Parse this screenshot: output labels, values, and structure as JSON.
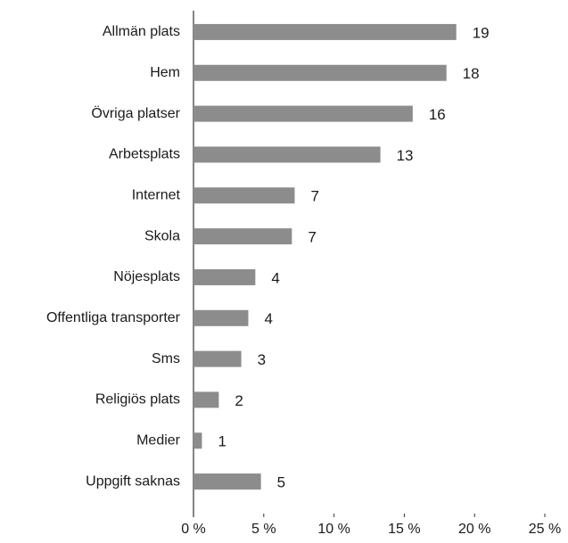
{
  "chart_data": {
    "type": "bar",
    "orientation": "horizontal",
    "categories": [
      "Allmän plats",
      "Hem",
      "Övriga platser",
      "Arbetsplats",
      "Internet",
      "Skola",
      "Nöjesplats",
      "Offentliga transporter",
      "Sms",
      "Religiös plats",
      "Medier",
      "Uppgift saknas"
    ],
    "values": [
      18.7,
      18.0,
      15.6,
      13.3,
      7.2,
      7.0,
      4.4,
      3.9,
      3.4,
      1.8,
      0.6,
      4.8
    ],
    "value_labels": [
      "19",
      "18",
      "16",
      "13",
      "7",
      "7",
      "4",
      "4",
      "3",
      "2",
      "1",
      "5"
    ],
    "color": "#8c8c8c",
    "xlim": [
      0,
      25
    ],
    "xticks": [
      {
        "value": 0,
        "label": "0 %"
      },
      {
        "value": 5,
        "label": "5 %"
      },
      {
        "value": 10,
        "label": "10 %"
      },
      {
        "value": 15,
        "label": "15 %"
      },
      {
        "value": 20,
        "label": "20 %"
      },
      {
        "value": 25,
        "label": "25 %"
      }
    ],
    "grid": false
  }
}
